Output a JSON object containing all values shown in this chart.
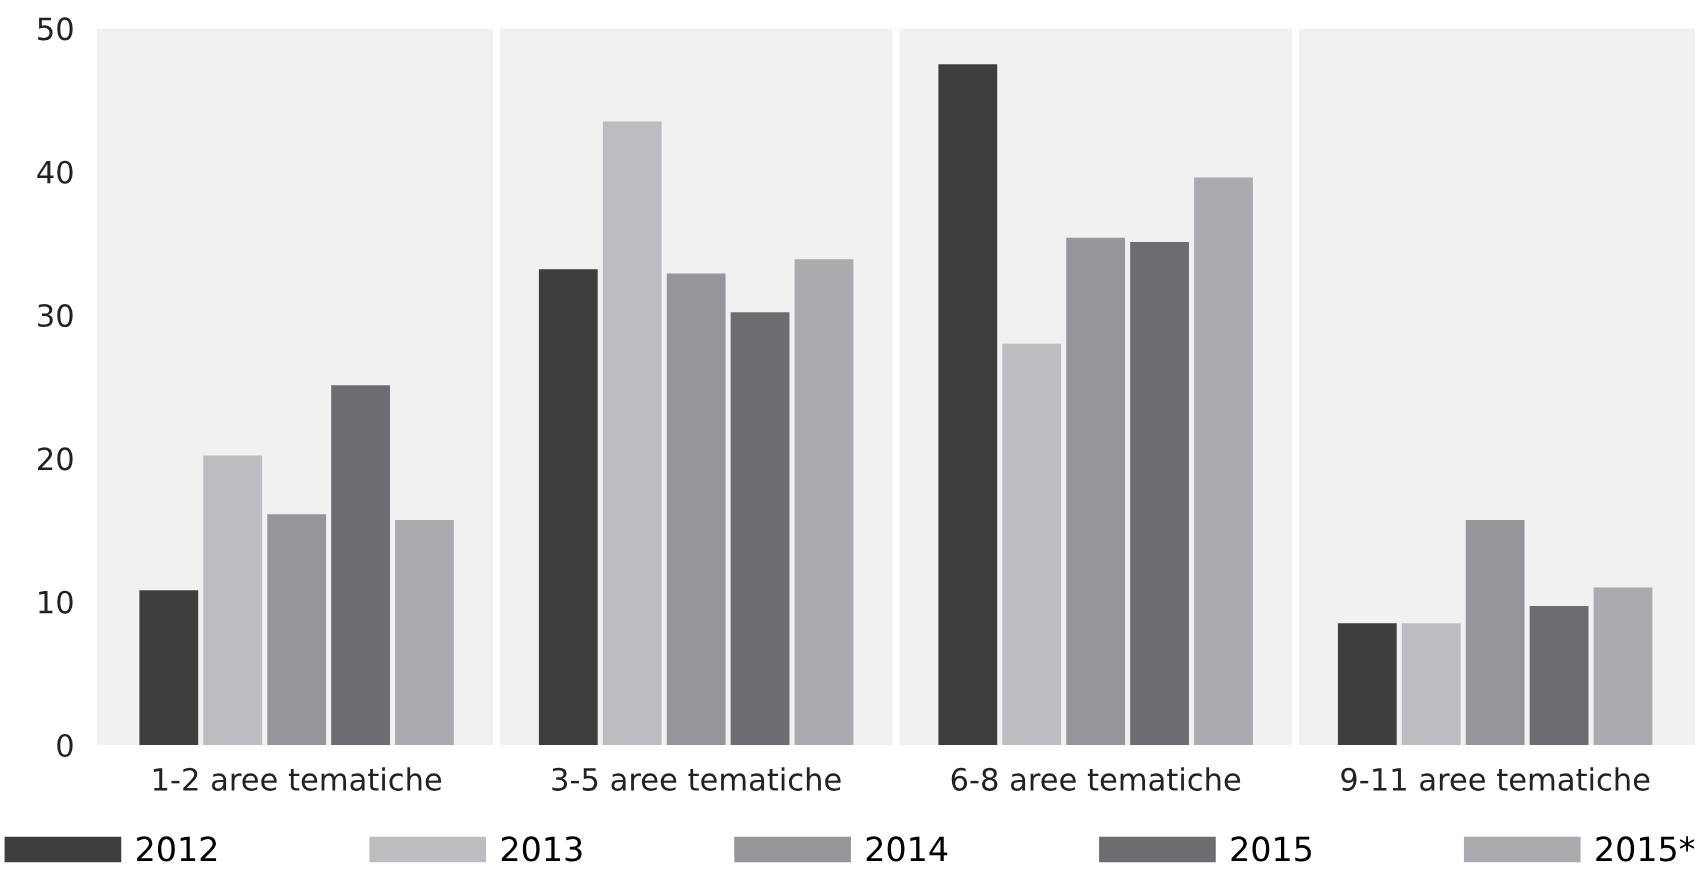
{
  "chart_data": {
    "type": "bar",
    "categories": [
      "1-2 aree tematiche",
      "3-5 aree tematiche",
      "6-8 aree tematiche",
      "9-11 aree tematiche"
    ],
    "series": [
      {
        "name": "2012",
        "color": "#3e3e3e",
        "values": [
          10.8,
          33.2,
          47.5,
          8.5
        ]
      },
      {
        "name": "2013",
        "color": "#bcbdc0",
        "values": [
          20.2,
          43.5,
          28.0,
          8.5
        ]
      },
      {
        "name": "2014",
        "color": "#959699",
        "values": [
          16.1,
          32.9,
          35.4,
          15.7
        ]
      },
      {
        "name": "2015",
        "color": "#6c6d70",
        "values": [
          25.1,
          30.2,
          35.1,
          9.7
        ]
      },
      {
        "name": "2015*",
        "color": "#aaabae",
        "values": [
          15.7,
          33.9,
          39.6,
          11.0
        ]
      }
    ],
    "ylim": [
      0,
      50
    ],
    "yticks": [
      0,
      10,
      20,
      30,
      40,
      50
    ],
    "grid": "x",
    "legend": "bottom"
  }
}
